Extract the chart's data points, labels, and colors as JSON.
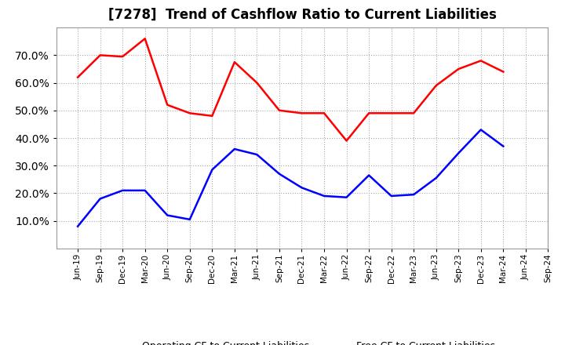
{
  "title": "[7278]  Trend of Cashflow Ratio to Current Liabilities",
  "x_labels": [
    "Jun-19",
    "Sep-19",
    "Dec-19",
    "Mar-20",
    "Jun-20",
    "Sep-20",
    "Dec-20",
    "Mar-21",
    "Jun-21",
    "Sep-21",
    "Dec-21",
    "Mar-22",
    "Jun-22",
    "Sep-22",
    "Dec-22",
    "Mar-23",
    "Jun-23",
    "Sep-23",
    "Dec-23",
    "Mar-24",
    "Jun-24",
    "Sep-24"
  ],
  "operating_cf": [
    62.0,
    70.0,
    69.5,
    76.0,
    52.0,
    49.0,
    48.0,
    67.5,
    60.0,
    50.0,
    49.0,
    49.0,
    39.0,
    49.0,
    49.0,
    49.0,
    59.0,
    65.0,
    68.0,
    64.0,
    null,
    null
  ],
  "free_cf": [
    8.0,
    18.0,
    21.0,
    21.0,
    12.0,
    10.5,
    28.5,
    36.0,
    34.0,
    27.0,
    22.0,
    19.0,
    18.5,
    26.5,
    19.0,
    19.5,
    25.5,
    34.5,
    43.0,
    37.0,
    null,
    null
  ],
  "operating_color": "#ff0000",
  "free_color": "#0000ff",
  "ylim": [
    0,
    80
  ],
  "yticks": [
    10.0,
    20.0,
    30.0,
    40.0,
    50.0,
    60.0,
    70.0
  ],
  "grid_color": "#aaaaaa",
  "background_color": "#ffffff",
  "title_fontsize": 12,
  "legend_labels": [
    "Operating CF to Current Liabilities",
    "Free CF to Current Liabilities"
  ]
}
